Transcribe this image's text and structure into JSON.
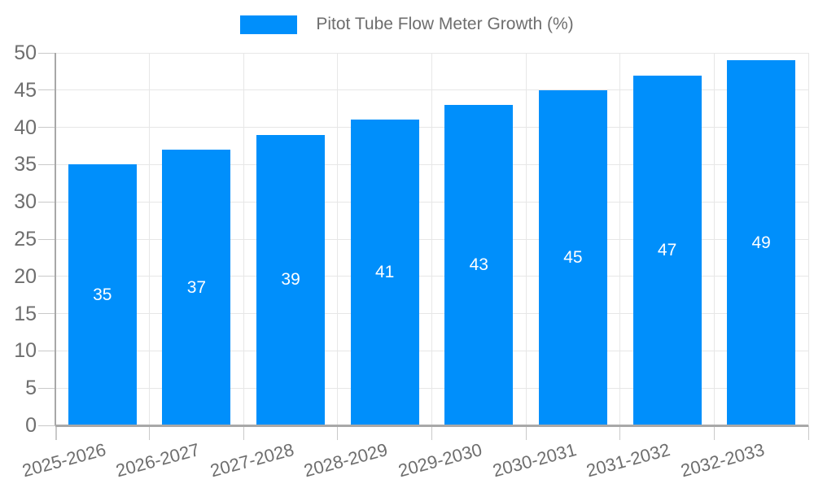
{
  "legend": {
    "label": "Pitot Tube Flow Meter Growth (%)"
  },
  "chart_data": {
    "type": "bar",
    "title": "",
    "categories": [
      "2025-2026",
      "2026-2027",
      "2027-2028",
      "2028-2029",
      "2029-2030",
      "2030-2031",
      "2031-2032",
      "2032-2033"
    ],
    "series": [
      {
        "name": "Pitot Tube Flow Meter Growth (%)",
        "values": [
          35,
          37,
          39,
          41,
          43,
          45,
          47,
          49
        ]
      }
    ],
    "value_labels": [
      "35",
      "37",
      "39",
      "41",
      "43",
      "45",
      "47",
      "49"
    ],
    "xlabel": "",
    "ylabel": "",
    "ylim": [
      0,
      50
    ],
    "yticks": [
      0,
      5,
      10,
      15,
      20,
      25,
      30,
      35,
      40,
      45,
      50
    ],
    "grid": "on",
    "legend_position": "top-center",
    "x_label_rotation_deg": -15,
    "colors": {
      "bar": "#008FFB",
      "value_text": "#ffffff",
      "axis_label_text": "#6e6e6e",
      "legend_text": "#6e6e6e",
      "gridline": "#e7e7e7",
      "axis_line": "#a8a8a8",
      "tick": "#c9c9c9",
      "background": "#ffffff"
    }
  }
}
